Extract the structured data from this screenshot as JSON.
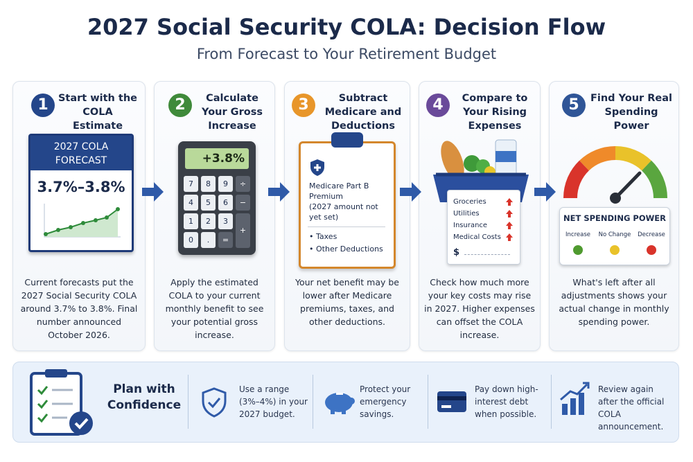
{
  "header": {
    "title": "2027 Social Security COLA: Decision Flow",
    "subtitle": "From Forecast to Your Retirement Budget"
  },
  "steps": [
    {
      "number": "1",
      "title": "Start with the COLA Estimate",
      "description": "Current forecasts put the 2027 Social Security COLA around 3.7% to 3.8%. Final number announced October 2026.",
      "card_title": "2027 COLA FORECAST",
      "card_value": "3.7%–3.8%"
    },
    {
      "number": "2",
      "title": "Calculate Your Gross Increase",
      "description": "Apply the estimated COLA to your current monthly benefit to see your potential gross increase.",
      "display": "+3.8%",
      "keys": [
        "7",
        "8",
        "9",
        "÷",
        "4",
        "5",
        "6",
        "−",
        "1",
        "2",
        "3",
        "+",
        "0",
        ".",
        "="
      ]
    },
    {
      "number": "3",
      "title": "Subtract Medicare and Deductions",
      "description": "Your net benefit may be lower after Medicare premiums, taxes, and other deductions.",
      "premium": "Medicare Part B Premium",
      "premium_note": "(2027 amount not yet set)",
      "items": [
        "Taxes",
        "Other Deductions"
      ]
    },
    {
      "number": "4",
      "title": "Compare to Your Rising Expenses",
      "description": "Check how much more your key costs may rise in 2027. Higher expenses can offset the COLA increase.",
      "items": [
        "Groceries",
        "Utilities",
        "Insurance",
        "Medical Costs"
      ],
      "currency": "$"
    },
    {
      "number": "5",
      "title": "Find Your Real Spending Power",
      "description": "What's left after all adjustments shows your actual change in monthly spending power.",
      "panel_title": "NET SPENDING POWER",
      "legend": [
        "Increase",
        "No Change",
        "Decrease"
      ]
    }
  ],
  "footer": {
    "title": "Plan with Confidence",
    "tips": [
      "Use a range (3%–4%) in your 2027 budget.",
      "Protect your emergency savings.",
      "Pay down high-interest debt when possible.",
      "Review again after the official COLA announcement."
    ]
  }
}
